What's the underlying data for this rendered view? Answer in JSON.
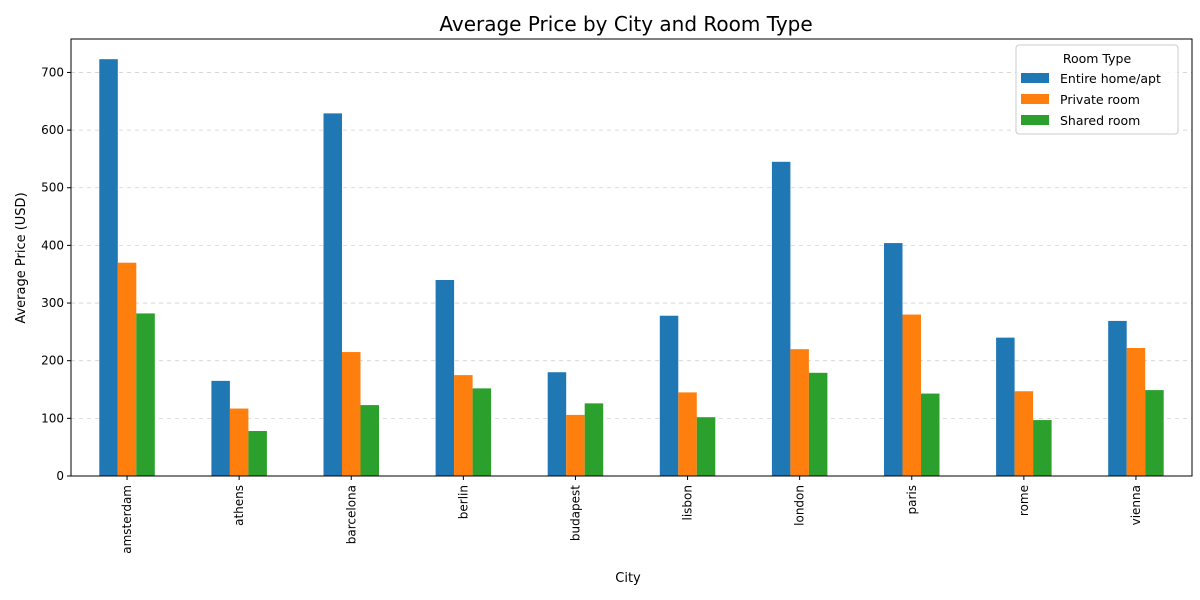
{
  "chart_data": {
    "type": "bar",
    "title": "Average Price by City and Room Type",
    "xlabel": "City",
    "ylabel": "Average Price (USD)",
    "categories": [
      "amsterdam",
      "athens",
      "barcelona",
      "berlin",
      "budapest",
      "lisbon",
      "london",
      "paris",
      "rome",
      "vienna"
    ],
    "series": [
      {
        "name": "Entire home/apt",
        "color": "#1f77b4",
        "values": [
          723,
          165,
          629,
          340,
          180,
          278,
          545,
          404,
          240,
          269
        ]
      },
      {
        "name": "Private room",
        "color": "#ff7f0e",
        "values": [
          370,
          117,
          215,
          175,
          106,
          145,
          220,
          280,
          147,
          222
        ]
      },
      {
        "name": "Shared room",
        "color": "#2ca02c",
        "values": [
          282,
          78,
          123,
          152,
          126,
          102,
          179,
          143,
          97,
          149
        ]
      }
    ],
    "ylim": [
      0,
      758
    ],
    "yticks": [
      0,
      100,
      200,
      300,
      400,
      500,
      600,
      700
    ],
    "grid": "y-dashed",
    "legend": {
      "title": "Room Type",
      "position": "top-right"
    }
  }
}
